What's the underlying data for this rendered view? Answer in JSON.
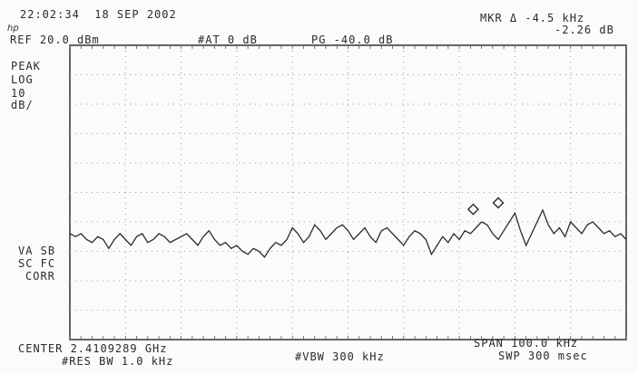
{
  "header": {
    "timestamp": "22:02:34  18 SEP 2002",
    "logo_text": "hp",
    "marker_line1": "MKR Δ -4.5 kHz",
    "marker_line2": "-2.26 dB",
    "ref_level": "REF 20.0 dBm",
    "attenuation": "#AT 0 dB",
    "preamp_gain": "PG -40.0 dB"
  },
  "left_panel": {
    "detector": "PEAK",
    "scale_type": "LOG",
    "scale_value": "10",
    "scale_unit": "dB/",
    "va_sb": "VA SB",
    "sc_fc": "SC FC",
    "corr": "CORR"
  },
  "footer": {
    "center": "CENTER 2.4109289 GHz",
    "res_bw": "#RES BW 1.0 kHz",
    "vbw": "#VBW 300 kHz",
    "span": "SPAN 100.0 kHz",
    "sweep": "SWP 300 msec"
  },
  "chart_data": {
    "type": "line",
    "title": "",
    "xlabel": "",
    "ylabel": "",
    "x_center_ghz": 2.4109289,
    "span_khz": 100.0,
    "xlim_khz_offset": [
      -50,
      50
    ],
    "ref_level_dbm": 20.0,
    "scale_db_per_div": 10,
    "ylim_dbm": [
      -80,
      20
    ],
    "grid": true,
    "grid_divisions": {
      "x": 10,
      "y": 10
    },
    "trace_color": "#2b2b2b",
    "series": [
      {
        "x_khz": [
          -50,
          -49,
          -48,
          -47,
          -46,
          -45,
          -44,
          -43,
          -42,
          -41,
          -40,
          -39,
          -38,
          -37,
          -36,
          -35,
          -34,
          -33,
          -32,
          -31,
          -30,
          -29,
          -28,
          -27,
          -26,
          -25,
          -24,
          -23,
          -22,
          -21,
          -20,
          -19,
          -18,
          -17,
          -16,
          -15,
          -14,
          -13,
          -12,
          -11,
          -10,
          -9,
          -8,
          -7,
          -6,
          -5,
          -4,
          -3,
          -2,
          -1,
          0,
          1,
          2,
          3,
          4,
          5,
          6,
          7,
          8,
          9,
          10,
          11,
          12,
          13,
          14,
          15,
          16,
          17,
          18,
          19,
          20,
          21,
          22,
          23,
          24,
          25,
          26,
          27,
          28,
          29,
          30,
          31,
          32,
          33,
          34,
          35,
          36,
          37,
          38,
          39,
          40,
          41,
          42,
          43,
          44,
          45,
          46,
          47,
          48,
          49,
          50
        ],
        "y_dbm": [
          -44,
          -45,
          -44,
          -46,
          -47,
          -45,
          -46,
          -49,
          -46,
          -44,
          -46,
          -48,
          -45,
          -44,
          -47,
          -46,
          -44,
          -45,
          -47,
          -46,
          -45,
          -44,
          -46,
          -48,
          -45,
          -43,
          -46,
          -48,
          -47,
          -49,
          -48,
          -50,
          -51,
          -49,
          -50,
          -52,
          -49,
          -47,
          -48,
          -46,
          -42,
          -44,
          -47,
          -45,
          -41,
          -43,
          -46,
          -44,
          -42,
          -41,
          -43,
          -46,
          -44,
          -42,
          -45,
          -47,
          -43,
          -42,
          -44,
          -46,
          -48,
          -45,
          -43,
          -44,
          -46,
          -51,
          -48,
          -45,
          -47,
          -44,
          -46,
          -43,
          -44,
          -42,
          -40,
          -41,
          -44,
          -46,
          -43,
          -40,
          -37,
          -43,
          -48,
          -44,
          -40,
          -36,
          -41,
          -44,
          -42,
          -45,
          -40,
          -42,
          -44,
          -41,
          -40,
          -42,
          -44,
          -43,
          -45,
          -44,
          -46
        ]
      }
    ],
    "markers": [
      {
        "x_khz": 22.5,
        "y_dbm": -38.8,
        "symbol": "diamond"
      },
      {
        "x_khz": 27.0,
        "y_dbm": -36.6,
        "symbol": "diamond"
      }
    ]
  }
}
